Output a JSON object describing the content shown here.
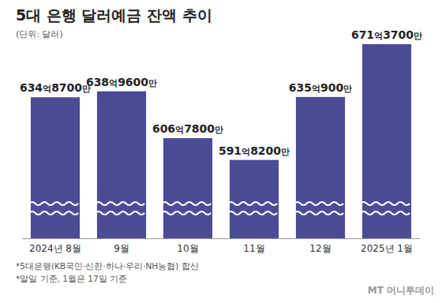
{
  "chart_data": {
    "type": "bar",
    "title": "5대 은행 달러예금 잔액 추이",
    "subtitle": "(단위: 달러)",
    "categories": [
      "2024년 8월",
      "9월",
      "10월",
      "11월",
      "12월",
      "2025년 1월"
    ],
    "values": [
      63487000000,
      63896000000,
      60678000000,
      59182000000,
      63509000000,
      67137000000
    ],
    "value_labels": [
      "634억8700만",
      "638억9600만",
      "606억7800만",
      "591억8200만",
      "635억900만",
      "671억3700만"
    ],
    "color": "#4b4b96",
    "ylim": [
      53800000000,
      68000000000
    ],
    "yticks": [],
    "grid": false,
    "data_labels": true,
    "tick_labels": "x",
    "notes": [
      "*5대은행(KB국민·신한·하나·우리·NH농협) 합산",
      "*말일 기준, 1월은 17일 기준"
    ],
    "source": "MT 머니투데이"
  }
}
